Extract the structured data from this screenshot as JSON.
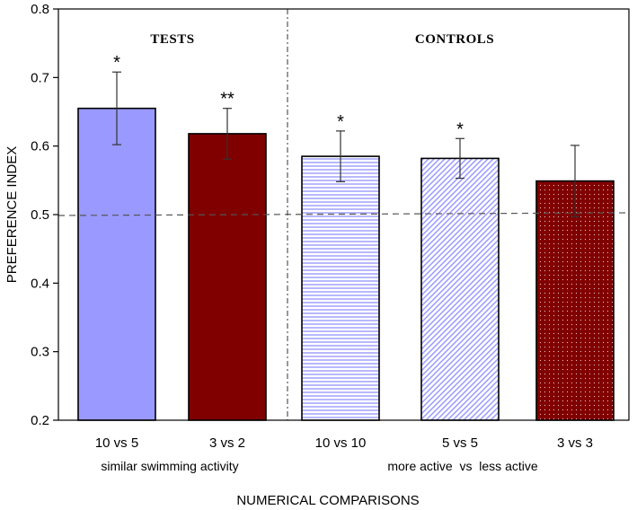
{
  "chart_data": {
    "type": "bar",
    "title": "",
    "xlabel": "NUMERICAL COMPARISONS",
    "ylabel": "PREFERENCE INDEX",
    "ylim": [
      0.2,
      0.8
    ],
    "yticks": [
      "0.2",
      "0.3",
      "0.4",
      "0.5",
      "0.6",
      "0.7",
      "0.8"
    ],
    "reference_line": 0.5,
    "sections": [
      {
        "label": "TESTS",
        "bars": [
          0,
          1
        ]
      },
      {
        "label": "CONTROLS",
        "bars": [
          2,
          3,
          4
        ]
      }
    ],
    "group_labels": [
      "similar swimming activity",
      "more active  vs  less active"
    ],
    "categories": [
      "10 vs 5",
      "3 vs 2",
      "10 vs 10",
      "5 vs 5",
      "3 vs 3"
    ],
    "values": [
      0.655,
      0.618,
      0.585,
      0.582,
      0.549
    ],
    "error": [
      0.053,
      0.037,
      0.037,
      0.029,
      0.052
    ],
    "significance": [
      "*",
      "**",
      "*",
      "*",
      ""
    ],
    "bar_fills": [
      "solid-lavender",
      "solid-darkred",
      "horizontal-lines-lavender",
      "diagonal-lines-lavender",
      "dotted-darkred"
    ],
    "colors": {
      "lavender": "#9999ff",
      "darkred": "#800000"
    }
  }
}
